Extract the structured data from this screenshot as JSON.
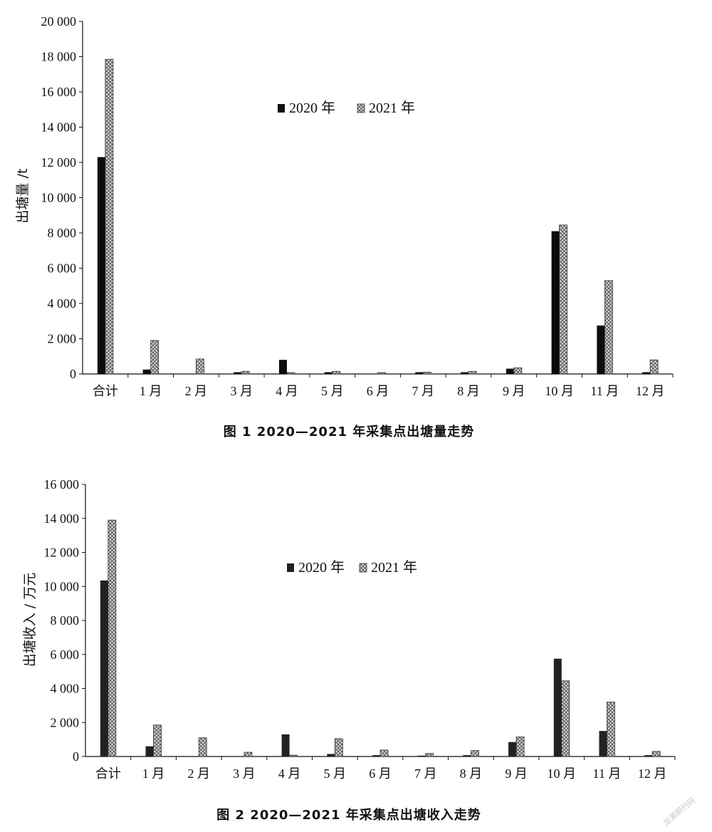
{
  "colors": {
    "series_2020": "#111111",
    "series_2021_fill": "#cfcfcf",
    "series_2021_hatch": "#555555"
  },
  "watermark": "龙源期刊网",
  "chart_data": [
    {
      "type": "bar",
      "caption": "图 1   2020—2021 年采集点出塘量走势",
      "ylabel": "出塘量 /t",
      "ylim": [
        0,
        20000
      ],
      "yticks": [
        0,
        2000,
        4000,
        6000,
        8000,
        10000,
        12000,
        14000,
        16000,
        18000,
        20000
      ],
      "ytick_labels": [
        "0",
        "2 000",
        "4 000",
        "6 000",
        "8 000",
        "10 000",
        "12 000",
        "14 000",
        "16 000",
        "18 000",
        "20 000"
      ],
      "categories": [
        "合计",
        "1 月",
        "2 月",
        "3 月",
        "4 月",
        "5 月",
        "6 月",
        "7 月",
        "8 月",
        "9 月",
        "10 月",
        "11 月",
        "12 月"
      ],
      "legend_position": "top-center",
      "series": [
        {
          "name": "2020 年",
          "values": [
            12300,
            250,
            0,
            100,
            800,
            100,
            0,
            100,
            100,
            300,
            8100,
            2750,
            100
          ]
        },
        {
          "name": "2021 年",
          "values": [
            17850,
            1900,
            850,
            150,
            80,
            150,
            80,
            100,
            150,
            350,
            8450,
            5300,
            800
          ]
        }
      ]
    },
    {
      "type": "bar",
      "caption": "图 2   2020—2021 年采集点出塘收入走势",
      "ylabel": "出塘收入 / 万元",
      "ylim": [
        0,
        16000
      ],
      "yticks": [
        0,
        2000,
        4000,
        6000,
        8000,
        10000,
        12000,
        14000,
        16000
      ],
      "ytick_labels": [
        "0",
        "2 000",
        "4 000",
        "6 000",
        "8 000",
        "10 000",
        "12 000",
        "14 000",
        "16 000"
      ],
      "categories": [
        "合计",
        "1 月",
        "2 月",
        "3 月",
        "4 月",
        "5 月",
        "6 月",
        "7 月",
        "8 月",
        "9 月",
        "10 月",
        "11 月",
        "12 月"
      ],
      "legend_position": "top-center",
      "series": [
        {
          "name": "2020 年",
          "values": [
            10350,
            600,
            0,
            0,
            1300,
            150,
            80,
            50,
            80,
            850,
            5750,
            1500,
            80
          ]
        },
        {
          "name": "2021 年",
          "values": [
            13900,
            1850,
            1100,
            250,
            80,
            1050,
            380,
            180,
            350,
            1150,
            4450,
            3200,
            300
          ]
        }
      ]
    }
  ]
}
